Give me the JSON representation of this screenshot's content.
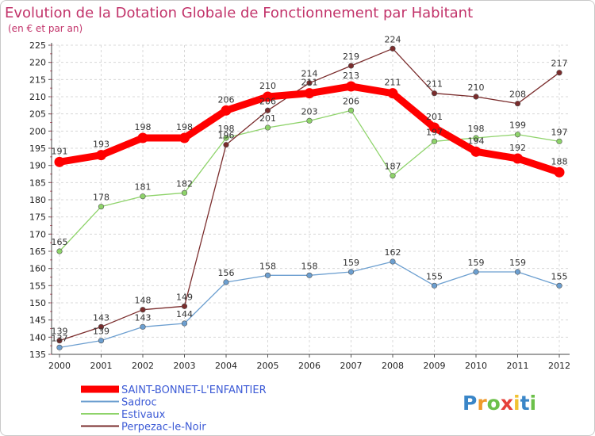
{
  "chart_data": {
    "type": "line",
    "title": "Evolution de la Dotation Globale de Fonctionnement par Habitant",
    "subtitle": "(en € et par an)",
    "xlabel": "",
    "ylabel": "",
    "categories": [
      "2000",
      "2001",
      "2002",
      "2003",
      "2004",
      "2005",
      "2006",
      "2007",
      "2008",
      "2009",
      "2010",
      "2011",
      "2012"
    ],
    "ylim": [
      135,
      225
    ],
    "yticks": [
      "135",
      "140",
      "145",
      "150",
      "155",
      "160",
      "165",
      "170",
      "175",
      "180",
      "185",
      "190",
      "195",
      "200",
      "205",
      "210",
      "215",
      "220",
      "225"
    ],
    "grid": true,
    "series": [
      {
        "name": "SAINT-BONNET-L'ENFANTIER",
        "color": "#ff0000",
        "values": [
          191,
          193,
          198,
          198,
          206,
          210,
          211,
          213,
          211,
          201,
          194,
          192,
          188
        ],
        "labels": [
          "191",
          "193",
          "198",
          "198",
          "206",
          "210",
          "211",
          "213",
          "211",
          "201",
          "194",
          "192",
          "188"
        ]
      },
      {
        "name": "Sadroc",
        "color": "#6c9fd0",
        "values": [
          137,
          139,
          143,
          144,
          156,
          158,
          158,
          159,
          162,
          155,
          159,
          159,
          155
        ],
        "labels": [
          "137",
          "139",
          "143",
          "144",
          "156",
          "158",
          "158",
          "159",
          "162",
          "155",
          "159",
          "159",
          "155"
        ]
      },
      {
        "name": "Estivaux",
        "color": "#8ed36a",
        "values": [
          165,
          178,
          181,
          182,
          198,
          201,
          203,
          206,
          187,
          197,
          198,
          199,
          197
        ],
        "labels": [
          "165",
          "178",
          "181",
          "182",
          "198",
          "201",
          "203",
          "206",
          "187",
          "197",
          "198",
          "199",
          "197"
        ]
      },
      {
        "name": "Perpezac-le-Noir",
        "color": "#7a2c2c",
        "values": [
          139,
          143,
          148,
          149,
          196,
          206,
          214,
          219,
          224,
          211,
          210,
          208,
          217
        ],
        "labels": [
          "139",
          "143",
          "148",
          "149",
          "196",
          "206",
          "214",
          "219",
          "224",
          "211",
          "210",
          "208",
          "217"
        ]
      }
    ]
  },
  "logo": {
    "text": "Proxiti",
    "letters": [
      "P",
      "r",
      "o",
      "x",
      "i",
      "t",
      "i"
    ]
  }
}
